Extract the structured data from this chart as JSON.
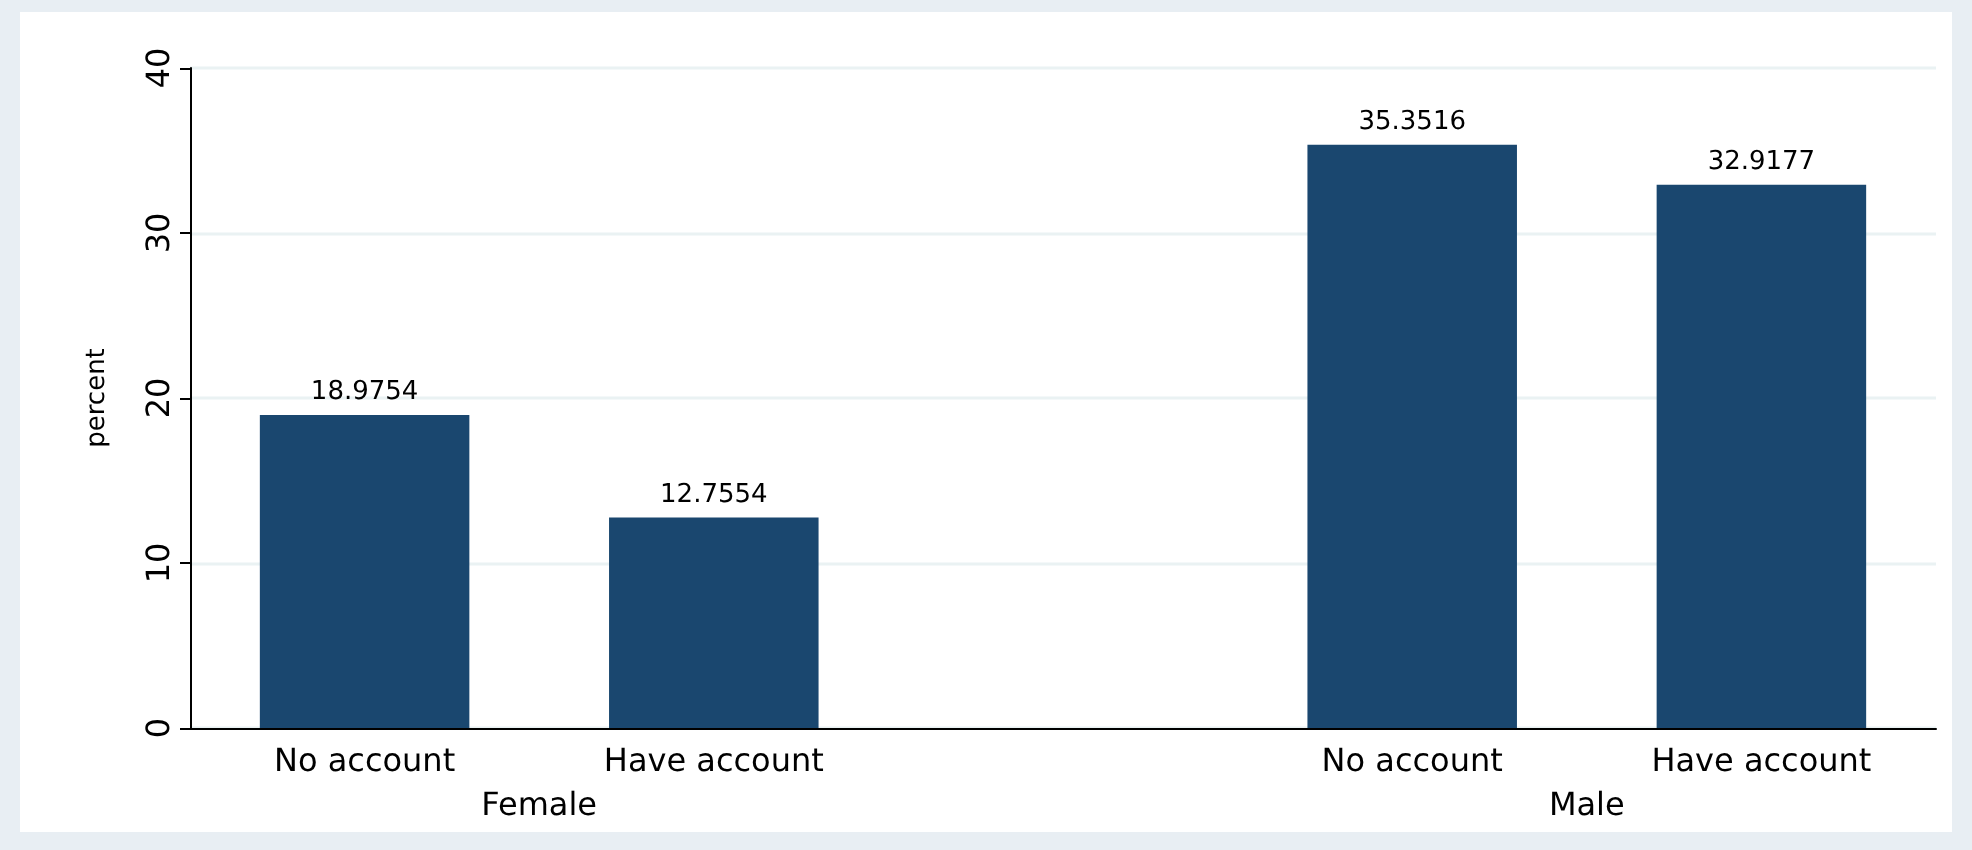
{
  "chart_data": {
    "type": "bar",
    "ylabel": "percent",
    "categories": [
      "No account",
      "Have account",
      null,
      "No account",
      "Have account"
    ],
    "values": [
      18.9754,
      12.7554,
      null,
      35.3516,
      32.9177
    ],
    "color": "#1a476f",
    "data_labels": true,
    "ylim": [
      0,
      40
    ],
    "yticks": [
      0,
      10,
      20,
      30,
      40
    ],
    "grid": "y",
    "annotations": [
      "Female",
      "Male"
    ]
  }
}
